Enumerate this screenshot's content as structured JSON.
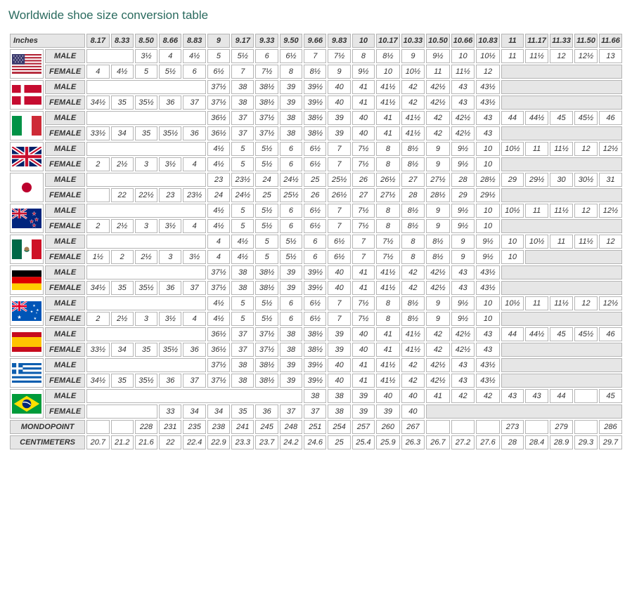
{
  "title": "Worldwide shoe size conversion table",
  "header_first": "Inches",
  "inches": [
    "8.17",
    "8.33",
    "8.50",
    "8.66",
    "8.83",
    "9",
    "9.17",
    "9.33",
    "9.50",
    "9.66",
    "9.83",
    "10",
    "10.17",
    "10.33",
    "10.50",
    "10.66",
    "10.83",
    "11",
    "11.17",
    "11.33",
    "11.50",
    "11.66"
  ],
  "gender_labels": {
    "male": "MALE",
    "female": "FEMALE"
  },
  "mondopoint_label": "MONDOPOINT",
  "centimeters_label": "CENTIMETERS",
  "colors": {
    "header_bg": "#e6e6e6",
    "border": "#b5b5b5",
    "title": "#2b6b5f"
  },
  "countries": [
    {
      "flag": "us",
      "male": [
        "",
        "",
        "3½",
        "4",
        "4½",
        "5",
        "5½",
        "6",
        "6½",
        "7",
        "7½",
        "8",
        "8½",
        "9",
        "9½",
        "10",
        "10½",
        "11",
        "11½",
        "12",
        "12½",
        "13"
      ],
      "female": [
        "4",
        "4½",
        "5",
        "5½",
        "6",
        "6½",
        "7",
        "7½",
        "8",
        "8½",
        "9",
        "9½",
        "10",
        "10½",
        "11",
        "11½",
        "12",
        "",
        "",
        "",
        "",
        ""
      ]
    },
    {
      "flag": "dk",
      "male": [
        "",
        "",
        "",
        "",
        "",
        "37½",
        "38",
        "38½",
        "39",
        "39½",
        "40",
        "41",
        "41½",
        "42",
        "42½",
        "43",
        "43½",
        "",
        "",
        "",
        "",
        ""
      ],
      "female": [
        "34½",
        "35",
        "35½",
        "36",
        "37",
        "37½",
        "38",
        "38½",
        "39",
        "39½",
        "40",
        "41",
        "41½",
        "42",
        "42½",
        "43",
        "43½",
        "",
        "",
        "",
        "",
        ""
      ]
    },
    {
      "flag": "it",
      "male": [
        "",
        "",
        "",
        "",
        "",
        "36½",
        "37",
        "37½",
        "38",
        "38½",
        "39",
        "40",
        "41",
        "41½",
        "42",
        "42½",
        "43",
        "44",
        "44½",
        "45",
        "45½",
        "46"
      ],
      "female": [
        "33½",
        "34",
        "35",
        "35½",
        "36",
        "36½",
        "37",
        "37½",
        "38",
        "38½",
        "39",
        "40",
        "41",
        "41½",
        "42",
        "42½",
        "43",
        "",
        "",
        "",
        "",
        ""
      ]
    },
    {
      "flag": "gb",
      "male": [
        "",
        "",
        "",
        "",
        "",
        "4½",
        "5",
        "5½",
        "6",
        "6½",
        "7",
        "7½",
        "8",
        "8½",
        "9",
        "9½",
        "10",
        "10½",
        "11",
        "11½",
        "12",
        "12½"
      ],
      "female": [
        "2",
        "2½",
        "3",
        "3½",
        "4",
        "4½",
        "5",
        "5½",
        "6",
        "6½",
        "7",
        "7½",
        "8",
        "8½",
        "9",
        "9½",
        "10",
        "",
        "",
        "",
        "",
        ""
      ]
    },
    {
      "flag": "jp",
      "male": [
        "",
        "",
        "",
        "",
        "",
        "23",
        "23½",
        "24",
        "24½",
        "25",
        "25½",
        "26",
        "26½",
        "27",
        "27½",
        "28",
        "28½",
        "29",
        "29½",
        "30",
        "30½",
        "31"
      ],
      "female": [
        "",
        "22",
        "22½",
        "23",
        "23½",
        "24",
        "24½",
        "25",
        "25½",
        "26",
        "26½",
        "27",
        "27½",
        "28",
        "28½",
        "29",
        "29½",
        "",
        "",
        "",
        "",
        ""
      ]
    },
    {
      "flag": "nz",
      "male": [
        "",
        "",
        "",
        "",
        "",
        "4½",
        "5",
        "5½",
        "6",
        "6½",
        "7",
        "7½",
        "8",
        "8½",
        "9",
        "9½",
        "10",
        "10½",
        "11",
        "11½",
        "12",
        "12½"
      ],
      "female": [
        "2",
        "2½",
        "3",
        "3½",
        "4",
        "4½",
        "5",
        "5½",
        "6",
        "6½",
        "7",
        "7½",
        "8",
        "8½",
        "9",
        "9½",
        "10",
        "",
        "",
        "",
        "",
        ""
      ]
    },
    {
      "flag": "mx",
      "male": [
        "",
        "",
        "",
        "",
        "",
        "4",
        "4½",
        "5",
        "5½",
        "6",
        "6½",
        "7",
        "7½",
        "8",
        "8½",
        "9",
        "9½",
        "10",
        "10½",
        "11",
        "11½",
        "12"
      ],
      "female": [
        "1½",
        "2",
        "2½",
        "3",
        "3½",
        "4",
        "4½",
        "5",
        "5½",
        "6",
        "6½",
        "7",
        "7½",
        "8",
        "8½",
        "9",
        "9½",
        "10",
        "",
        "",
        "",
        ""
      ]
    },
    {
      "flag": "de",
      "male": [
        "",
        "",
        "",
        "",
        "",
        "37½",
        "38",
        "38½",
        "39",
        "39½",
        "40",
        "41",
        "41½",
        "42",
        "42½",
        "43",
        "43½",
        "",
        "",
        "",
        "",
        ""
      ],
      "female": [
        "34½",
        "35",
        "35½",
        "36",
        "37",
        "37½",
        "38",
        "38½",
        "39",
        "39½",
        "40",
        "41",
        "41½",
        "42",
        "42½",
        "43",
        "43½",
        "",
        "",
        "",
        "",
        ""
      ]
    },
    {
      "flag": "au",
      "male": [
        "",
        "",
        "",
        "",
        "",
        "4½",
        "5",
        "5½",
        "6",
        "6½",
        "7",
        "7½",
        "8",
        "8½",
        "9",
        "9½",
        "10",
        "10½",
        "11",
        "11½",
        "12",
        "12½"
      ],
      "female": [
        "2",
        "2½",
        "3",
        "3½",
        "4",
        "4½",
        "5",
        "5½",
        "6",
        "6½",
        "7",
        "7½",
        "8",
        "8½",
        "9",
        "9½",
        "10",
        "",
        "",
        "",
        "",
        ""
      ]
    },
    {
      "flag": "es",
      "male": [
        "",
        "",
        "",
        "",
        "",
        "36½",
        "37",
        "37½",
        "38",
        "38½",
        "39",
        "40",
        "41",
        "41½",
        "42",
        "42½",
        "43",
        "44",
        "44½",
        "45",
        "45½",
        "46"
      ],
      "female": [
        "33½",
        "34",
        "35",
        "35½",
        "36",
        "36½",
        "37",
        "37½",
        "38",
        "38½",
        "39",
        "40",
        "41",
        "41½",
        "42",
        "42½",
        "43",
        "",
        "",
        "",
        "",
        ""
      ]
    },
    {
      "flag": "gr",
      "male": [
        "",
        "",
        "",
        "",
        "",
        "37½",
        "38",
        "38½",
        "39",
        "39½",
        "40",
        "41",
        "41½",
        "42",
        "42½",
        "43",
        "43½",
        "",
        "",
        "",
        "",
        ""
      ],
      "female": [
        "34½",
        "35",
        "35½",
        "36",
        "37",
        "37½",
        "38",
        "38½",
        "39",
        "39½",
        "40",
        "41",
        "41½",
        "42",
        "42½",
        "43",
        "43½",
        "",
        "",
        "",
        "",
        ""
      ]
    },
    {
      "flag": "br",
      "male": [
        "",
        "",
        "",
        "",
        "",
        "",
        "",
        "",
        "",
        "38",
        "38",
        "39",
        "40",
        "40",
        "41",
        "42",
        "42",
        "43",
        "43",
        "44",
        "",
        "45"
      ],
      "female": [
        "",
        "",
        "",
        "33",
        "34",
        "34",
        "35",
        "36",
        "37",
        "37",
        "38",
        "39",
        "39",
        "40",
        "",
        "",
        "",
        "",
        "",
        "",
        "",
        ""
      ]
    }
  ],
  "mondopoint": [
    "",
    "",
    "228",
    "231",
    "235",
    "238",
    "241",
    "245",
    "248",
    "251",
    "254",
    "257",
    "260",
    "267",
    "",
    "",
    "",
    "273",
    "",
    "279",
    "",
    "286"
  ],
  "centimeters": [
    "20.7",
    "21.2",
    "21.6",
    "22",
    "22.4",
    "22.9",
    "23.3",
    "23.7",
    "24.2",
    "24.6",
    "25",
    "25.4",
    "25.9",
    "26.3",
    "26.7",
    "27.2",
    "27.6",
    "28",
    "28.4",
    "28.9",
    "29.3",
    "29.7"
  ],
  "flag_svgs": {
    "us": "<svg class='flag-svg' viewBox='0 0 60 40'><rect width='60' height='40' fill='#b22234'/><g fill='#fff'><rect y='3' width='60' height='3'/><rect y='9' width='60' height='3'/><rect y='15' width='60' height='3'/><rect y='21' width='60' height='3'/><rect y='27' width='60' height='3'/><rect y='33' width='60' height='3'/></g><rect width='26' height='21' fill='#3c3b6e'/><g fill='#fff'><circle cx='4' cy='4' r='1'/><circle cx='10' cy='4' r='1'/><circle cx='16' cy='4' r='1'/><circle cx='22' cy='4' r='1'/><circle cx='7' cy='8' r='1'/><circle cx='13' cy='8' r='1'/><circle cx='19' cy='8' r='1'/><circle cx='4' cy='12' r='1'/><circle cx='10' cy='12' r='1'/><circle cx='16' cy='12' r='1'/><circle cx='22' cy='12' r='1'/><circle cx='7' cy='16' r='1'/><circle cx='13' cy='16' r='1'/><circle cx='19' cy='16' r='1'/></g></svg>",
    "dk": "<svg class='flag-svg' viewBox='0 0 60 40'><rect width='60' height='40' fill='#c60c30'/><rect x='18' width='7' height='40' fill='#fff'/><rect y='16' width='60' height='7' fill='#fff'/></svg>",
    "it": "<svg class='flag-svg' viewBox='0 0 60 40'><rect width='20' height='40' fill='#009246'/><rect x='20' width='20' height='40' fill='#fff'/><rect x='40' width='20' height='40' fill='#ce2b37'/></svg>",
    "gb": "<svg class='flag-svg' viewBox='0 0 60 40'><rect width='60' height='40' fill='#012169'/><path d='M0,0 L60,40 M60,0 L0,40' stroke='#fff' stroke-width='8'/><path d='M0,0 L60,40 M60,0 L0,40' stroke='#c8102e' stroke-width='3'/><rect x='25' width='10' height='40' fill='#fff'/><rect y='15' width='60' height='10' fill='#fff'/><rect x='27' width='6' height='40' fill='#c8102e'/><rect y='17' width='60' height='6' fill='#c8102e'/></svg>",
    "jp": "<svg class='flag-svg' viewBox='0 0 60 40'><rect width='60' height='40' fill='#fff'/><circle cx='30' cy='20' r='10' fill='#bc002d'/></svg>",
    "nz": "<svg class='flag-svg' viewBox='0 0 60 40'><rect width='60' height='40' fill='#00247d'/><rect width='30' height='20' fill='#00247d'/><path d='M0,0 L30,20 M30,0 L0,20' stroke='#fff' stroke-width='4'/><path d='M0,0 L30,20 M30,0 L0,20' stroke='#c8102e' stroke-width='1.5'/><rect x='12' width='6' height='20' fill='#fff'/><rect y='7' width='30' height='6' fill='#fff'/><rect x='13' width='4' height='20' fill='#c8102e'/><rect y='8' width='30' height='4' fill='#c8102e'/><g fill='#c8102e' stroke='#fff' stroke-width='0.5'><polygon points='45,6 46,9 49,9 46.5,11 47.5,14 45,12 42.5,14 43.5,11 41,9 44,9'/><polygon points='50,18 51,21 54,21 51.5,23 52.5,26 50,24 47.5,26 48.5,23 46,21 49,21'/><polygon points='40,22 41,25 44,25 41.5,27 42.5,30 40,28 37.5,30 38.5,27 36,25 39,25'/><polygon points='45,30 46,33 49,33 46.5,35 47.5,38 45,36 42.5,38 43.5,35 41,33 44,33'/></g></svg>",
    "mx": "<svg class='flag-svg' viewBox='0 0 60 40'><rect width='20' height='40' fill='#006847'/><rect x='20' width='20' height='40' fill='#fff'/><rect x='40' width='20' height='40' fill='#ce1126'/><circle cx='30' cy='20' r='5' fill='#a67c52'/><path d='M25,22 Q30,27 35,22' stroke='#006847' stroke-width='1.5' fill='none'/></svg>",
    "de": "<svg class='flag-svg' viewBox='0 0 60 40'><rect width='60' height='13.3' fill='#000'/><rect y='13.3' width='60' height='13.3' fill='#dd0000'/><rect y='26.6' width='60' height='13.4' fill='#ffce00'/></svg>",
    "au": "<svg class='flag-svg' viewBox='0 0 60 40'><rect width='60' height='40' fill='#0055b7'/><rect width='30' height='20' fill='#0055b7'/><path d='M0,0 L30,20 M30,0 L0,20' stroke='#fff' stroke-width='4'/><path d='M0,0 L30,20 M30,0 L0,20' stroke='#e4002b' stroke-width='1.5'/><rect x='12' width='6' height='20' fill='#fff'/><rect y='7' width='30' height='6' fill='#fff'/><rect x='13' width='4' height='20' fill='#e4002b'/><rect y='8' width='30' height='4' fill='#e4002b'/><g fill='#fff'><polygon points='15,28 16,31 19,31 16.5,33 17.5,36 15,34 12.5,36 13.5,33 11,31 14,31'/><polygon points='45,6 45.7,8 47.8,8 46,9.3 46.7,11.3 45,10 43.3,11.3 44,9.3 42.2,8 44.3,8'/><polygon points='52,15 52.7,17 54.8,17 53,18.3 53.7,20.3 52,19 50.3,20.3 51,18.3 49.2,17 51.3,17'/><polygon points='40,18 40.7,20 42.8,20 41,21.3 41.7,23.3 40,22 38.3,23.3 39,21.3 37.2,20 39.3,20'/><polygon points='47,32 47.7,34 49.8,34 48,35.3 48.7,37.3 47,36 45.3,37.3 46,35.3 44.2,34 46.3,34'/><polygon points='50,22 50.4,23.1 51.5,23.1 50.6,23.8 51,25 50,24.2 49,25 49.4,23.8 48.5,23.1 49.6,23.1'/></g></svg>",
    "es": "<svg class='flag-svg' viewBox='0 0 60 40'><rect width='60' height='40' fill='#c60b1e'/><rect y='10' width='60' height='20' fill='#ffc400'/></svg>",
    "gr": "<svg class='flag-svg' viewBox='0 0 60 40'><rect width='60' height='40' fill='#0d5eaf'/><g fill='#fff'><rect y='4.4' width='60' height='4.4'/><rect y='13.3' width='60' height='4.4'/><rect y='22.2' width='60' height='4.4'/><rect y='31.1' width='60' height='4.4'/></g><rect width='22' height='22' fill='#0d5eaf'/><rect x='8.8' width='4.4' height='22' fill='#fff'/><rect y='8.8' width='22' height='4.4' fill='#fff'/></svg>",
    "br": "<svg class='flag-svg' viewBox='0 0 60 40'><rect width='60' height='40' fill='#009b3a'/><polygon points='30,4 56,20 30,36 4,20' fill='#fedf00'/><circle cx='30' cy='20' r='9' fill='#002776'/><path d='M22,17 Q30,15 38,22' stroke='#fff' stroke-width='2' fill='none'/></svg>"
  }
}
